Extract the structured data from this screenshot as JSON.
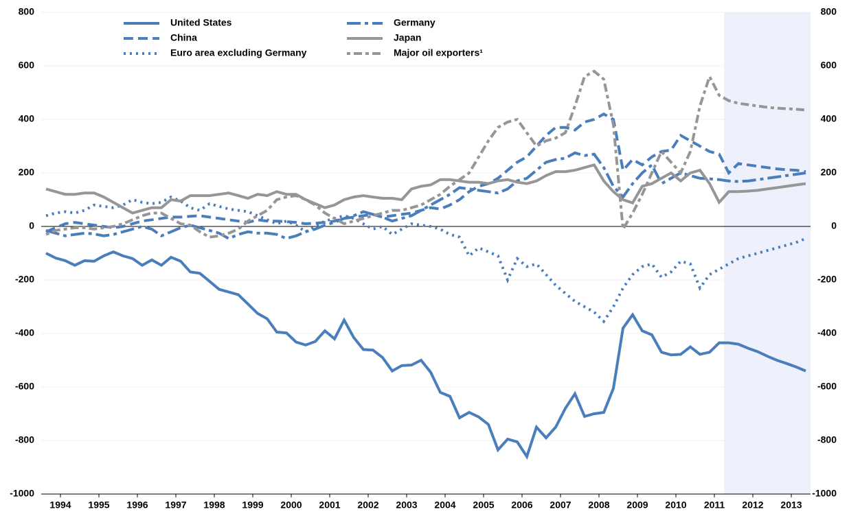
{
  "chart_data": {
    "type": "line",
    "x": [
      1994.125,
      1994.375,
      1994.625,
      1994.875,
      1995.125,
      1995.375,
      1995.625,
      1995.875,
      1996.125,
      1996.375,
      1996.625,
      1996.875,
      1997.125,
      1997.375,
      1997.625,
      1997.875,
      1998.125,
      1998.375,
      1998.625,
      1998.875,
      1999.125,
      1999.375,
      1999.625,
      1999.875,
      2000.125,
      2000.375,
      2000.625,
      2000.875,
      2001.125,
      2001.375,
      2001.625,
      2001.875,
      2002.125,
      2002.375,
      2002.625,
      2002.875,
      2003.125,
      2003.375,
      2003.625,
      2003.875,
      2004.125,
      2004.375,
      2004.625,
      2004.875,
      2005.125,
      2005.375,
      2005.625,
      2005.875,
      2006.125,
      2006.375,
      2006.625,
      2006.875,
      2007.125,
      2007.375,
      2007.625,
      2007.875,
      2008.125,
      2008.375,
      2008.625,
      2008.875,
      2009.125,
      2009.375,
      2009.625,
      2009.875,
      2010.125,
      2010.375,
      2010.625,
      2010.875,
      2011.125,
      2011.375,
      2011.625,
      2011.875,
      2012.125,
      2012.375,
      2012.625,
      2012.875,
      2013.125,
      2013.375,
      2013.625,
      2013.875
    ],
    "series": [
      {
        "name": "United States",
        "color": "#4a7ebb",
        "dash": "none",
        "values": [
          -100,
          -118,
          -128,
          -145,
          -128,
          -130,
          -110,
          -95,
          -110,
          -120,
          -145,
          -125,
          -145,
          -115,
          -130,
          -170,
          -175,
          -205,
          -235,
          -245,
          -255,
          -290,
          -325,
          -345,
          -395,
          -398,
          -432,
          -443,
          -430,
          -390,
          -420,
          -350,
          -415,
          -460,
          -462,
          -490,
          -540,
          -520,
          -518,
          -500,
          -545,
          -620,
          -635,
          -715,
          -695,
          -712,
          -740,
          -835,
          -795,
          -805,
          -860,
          -750,
          -790,
          -750,
          -680,
          -625,
          -710,
          -700,
          -695,
          -605,
          -380,
          -330,
          -390,
          -405,
          -470,
          -480,
          -478,
          -450,
          -478,
          -470,
          -435,
          -435,
          -440,
          -455,
          -468,
          -485,
          -500,
          -512,
          -525,
          -540
        ]
      },
      {
        "name": "China",
        "color": "#4a7ebb",
        "dash": "14,7",
        "values": [
          -20,
          -5,
          10,
          15,
          10,
          5,
          0,
          -5,
          0,
          10,
          20,
          25,
          30,
          35,
          35,
          38,
          40,
          35,
          30,
          25,
          20,
          15,
          25,
          20,
          20,
          18,
          15,
          10,
          12,
          15,
          20,
          30,
          35,
          40,
          45,
          35,
          40,
          45,
          50,
          60,
          70,
          65,
          80,
          100,
          130,
          150,
          160,
          180,
          210,
          240,
          260,
          300,
          340,
          370,
          370,
          360,
          390,
          400,
          420,
          400,
          210,
          250,
          230,
          260,
          280,
          285,
          340,
          320,
          300,
          280,
          270,
          200,
          235,
          230,
          225,
          220,
          215,
          212,
          210,
          205
        ]
      },
      {
        "name": "Euro area excluding Germany",
        "color": "#4a7ebb",
        "dash": "3,6",
        "values": [
          40,
          50,
          55,
          50,
          60,
          80,
          75,
          70,
          80,
          100,
          90,
          85,
          90,
          110,
          95,
          70,
          60,
          85,
          75,
          65,
          60,
          55,
          40,
          25,
          10,
          20,
          5,
          -20,
          0,
          20,
          30,
          40,
          30,
          10,
          -10,
          0,
          -30,
          -10,
          10,
          5,
          0,
          -10,
          -30,
          -40,
          -110,
          -80,
          -95,
          -110,
          -200,
          -120,
          -150,
          -140,
          -180,
          -220,
          -250,
          -280,
          -300,
          -320,
          -355,
          -300,
          -230,
          -180,
          -150,
          -140,
          -190,
          -170,
          -130,
          -140,
          -230,
          -180,
          -160,
          -140,
          -120,
          -110,
          -100,
          -90,
          -80,
          -70,
          -60,
          -45
        ]
      },
      {
        "name": "Germany",
        "color": "#4a7ebb",
        "dash": "20,6,5,6",
        "values": [
          -15,
          -25,
          -35,
          -30,
          -25,
          -28,
          -35,
          -30,
          -20,
          -10,
          0,
          -10,
          -35,
          -20,
          -5,
          5,
          -5,
          -15,
          -25,
          -45,
          -30,
          -20,
          -25,
          -25,
          -30,
          -45,
          -35,
          -20,
          -10,
          5,
          15,
          30,
          40,
          55,
          45,
          35,
          20,
          30,
          40,
          60,
          80,
          100,
          120,
          145,
          140,
          135,
          130,
          125,
          140,
          170,
          180,
          210,
          240,
          250,
          255,
          275,
          265,
          270,
          220,
          150,
          110,
          160,
          200,
          230,
          160,
          180,
          200,
          190,
          180,
          178,
          175,
          170,
          168,
          170,
          175,
          180,
          185,
          190,
          195,
          200
        ]
      },
      {
        "name": "Japan",
        "color": "#969696",
        "dash": "none",
        "values": [
          140,
          130,
          120,
          120,
          125,
          125,
          110,
          90,
          70,
          50,
          60,
          70,
          70,
          100,
          95,
          115,
          115,
          115,
          120,
          125,
          115,
          105,
          120,
          115,
          130,
          120,
          120,
          100,
          85,
          70,
          80,
          100,
          110,
          115,
          110,
          105,
          105,
          100,
          140,
          150,
          155,
          175,
          175,
          170,
          165,
          165,
          160,
          170,
          175,
          165,
          160,
          170,
          190,
          205,
          205,
          210,
          220,
          230,
          170,
          130,
          100,
          88,
          150,
          160,
          180,
          200,
          170,
          200,
          210,
          160,
          90,
          130,
          130,
          132,
          135,
          140,
          145,
          150,
          155,
          160
        ]
      },
      {
        "name": "Major oil exporters¹",
        "color": "#969696",
        "dash": "5,5,12,5",
        "values": [
          -30,
          -15,
          -10,
          -5,
          -5,
          -10,
          -5,
          0,
          10,
          25,
          40,
          50,
          50,
          30,
          10,
          5,
          -20,
          -40,
          -35,
          -25,
          -10,
          20,
          40,
          60,
          100,
          110,
          115,
          100,
          80,
          50,
          30,
          10,
          20,
          30,
          40,
          50,
          60,
          60,
          70,
          80,
          100,
          120,
          150,
          175,
          200,
          260,
          320,
          370,
          390,
          400,
          350,
          300,
          320,
          330,
          350,
          450,
          560,
          580,
          550,
          380,
          -10,
          50,
          120,
          200,
          280,
          240,
          200,
          280,
          450,
          560,
          490,
          470,
          460,
          455,
          450,
          445,
          442,
          440,
          438,
          435
        ]
      }
    ],
    "xlim": [
      1994,
      2014
    ],
    "xticks": [
      {
        "value": 1994.5,
        "label": "1994"
      },
      {
        "value": 1995.5,
        "label": "1995"
      },
      {
        "value": 1996.5,
        "label": "1996"
      },
      {
        "value": 1997.5,
        "label": "1997"
      },
      {
        "value": 1998.5,
        "label": "1998"
      },
      {
        "value": 1999.5,
        "label": "1999"
      },
      {
        "value": 2000.5,
        "label": "2000"
      },
      {
        "value": 2001.5,
        "label": "2001"
      },
      {
        "value": 2002.5,
        "label": "2002"
      },
      {
        "value": 2003.5,
        "label": "2003"
      },
      {
        "value": 2004.5,
        "label": "2004"
      },
      {
        "value": 2005.5,
        "label": "2005"
      },
      {
        "value": 2006.5,
        "label": "2006"
      },
      {
        "value": 2007.5,
        "label": "2007"
      },
      {
        "value": 2008.5,
        "label": "2008"
      },
      {
        "value": 2009.5,
        "label": "2009"
      },
      {
        "value": 2010.5,
        "label": "2010"
      },
      {
        "value": 2011.5,
        "label": "2011"
      },
      {
        "value": 2012.5,
        "label": "2012"
      },
      {
        "value": 2013.5,
        "label": "2013"
      }
    ],
    "ylim": [
      -1000,
      800
    ],
    "yticks": [
      -1000,
      -800,
      -600,
      -400,
      -200,
      0,
      200,
      400,
      600,
      800
    ],
    "grid": true,
    "shade_from": 2011.75,
    "shade_color": "#eef0fb"
  }
}
